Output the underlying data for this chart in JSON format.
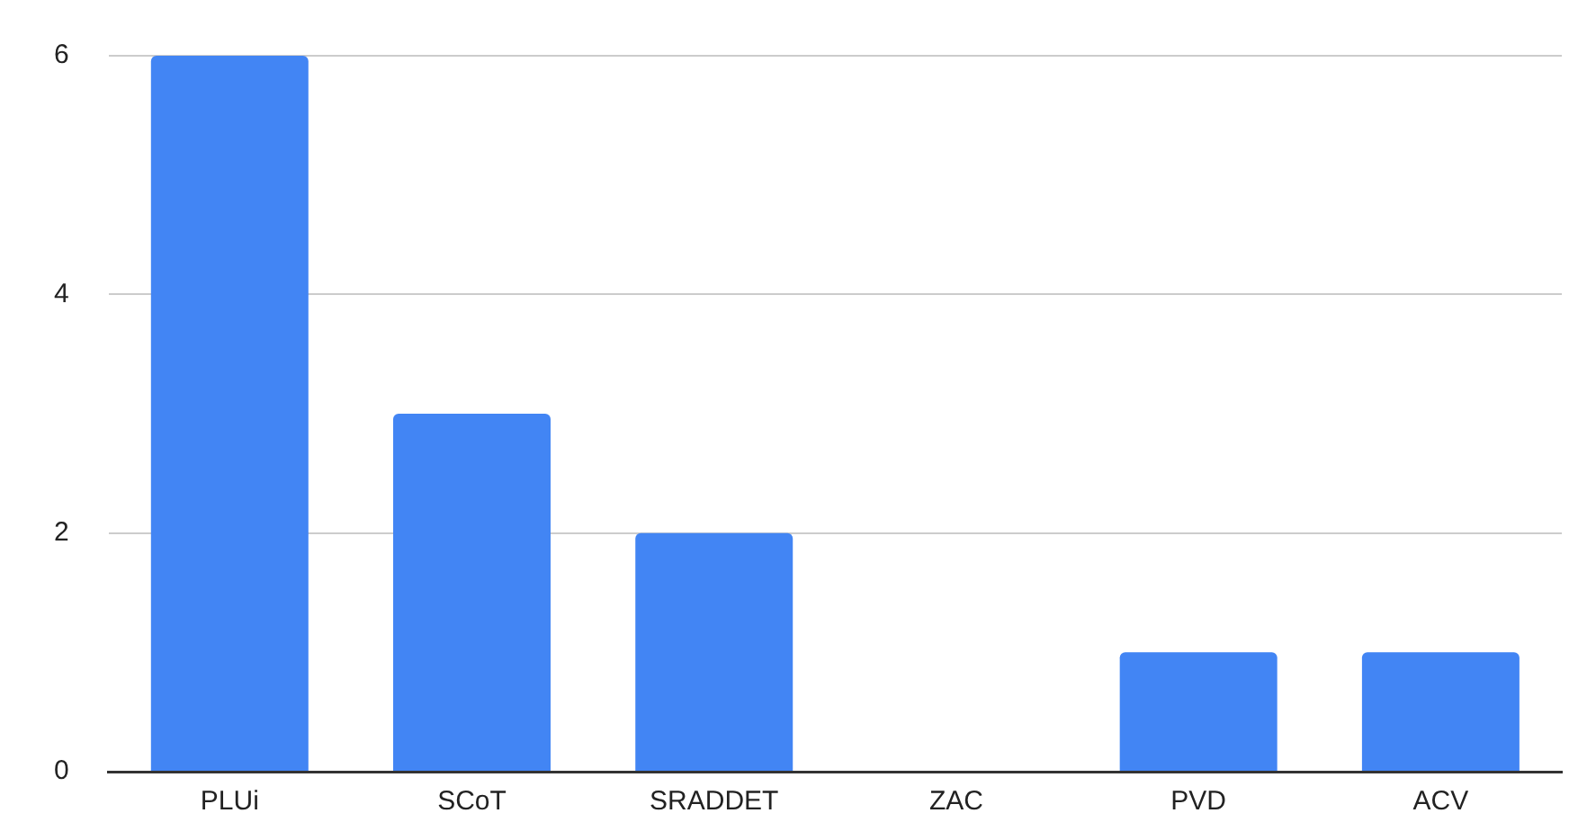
{
  "chart_data": {
    "type": "bar",
    "categories": [
      "PLUi",
      "SCoT",
      "SRADDET",
      "ZAC",
      "PVD",
      "ACV"
    ],
    "values": [
      6,
      3,
      2,
      0,
      1,
      1
    ],
    "color": "#4285f4",
    "ylim": [
      0,
      6
    ],
    "yticks": [
      0,
      2,
      4,
      6
    ],
    "grid": "y",
    "legend": false
  }
}
